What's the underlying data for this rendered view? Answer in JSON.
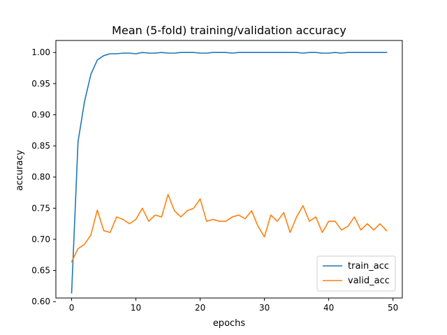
{
  "chart_data": {
    "type": "line",
    "title": "Mean (5-fold) training/validation accuracy",
    "xlabel": "epochs",
    "ylabel": "accuracy",
    "xlim": [
      -2.45,
      51.45
    ],
    "ylim": [
      0.6058,
      1.0193
    ],
    "xticks": [
      0,
      10,
      20,
      30,
      40,
      50
    ],
    "xtick_labels": [
      "0",
      "10",
      "20",
      "30",
      "40",
      "50"
    ],
    "yticks": [
      0.6,
      0.65,
      0.7,
      0.75,
      0.8,
      0.85,
      0.9,
      0.95,
      1.0
    ],
    "ytick_labels": [
      "0.60",
      "0.65",
      "0.70",
      "0.75",
      "0.80",
      "0.85",
      "0.90",
      "0.95",
      "1.00"
    ],
    "grid": false,
    "legend_position": "lower-right",
    "series": [
      {
        "name": "train_acc",
        "color": "#1f77b4",
        "x": [
          0,
          1,
          2,
          3,
          4,
          5,
          6,
          7,
          8,
          9,
          10,
          11,
          12,
          13,
          14,
          15,
          16,
          17,
          18,
          19,
          20,
          21,
          22,
          23,
          24,
          25,
          26,
          27,
          28,
          29,
          30,
          31,
          32,
          33,
          34,
          35,
          36,
          37,
          38,
          39,
          40,
          41,
          42,
          43,
          44,
          45,
          46,
          47,
          48,
          49
        ],
        "y": [
          0.614,
          0.857,
          0.921,
          0.965,
          0.988,
          0.995,
          0.998,
          0.998,
          0.999,
          0.999,
          0.998,
          1.0,
          0.999,
          0.999,
          1.0,
          0.999,
          0.999,
          1.0,
          1.0,
          1.0,
          0.999,
          0.999,
          1.0,
          1.0,
          1.0,
          0.999,
          1.0,
          1.0,
          1.0,
          1.0,
          1.0,
          1.0,
          1.0,
          1.0,
          1.0,
          1.0,
          0.999,
          1.0,
          1.0,
          0.999,
          0.999,
          1.0,
          0.999,
          1.0,
          1.0,
          1.0,
          1.0,
          1.0,
          1.0,
          1.0
        ]
      },
      {
        "name": "valid_acc",
        "color": "#ff7f0e",
        "x": [
          0,
          1,
          2,
          3,
          4,
          5,
          6,
          7,
          8,
          9,
          10,
          11,
          12,
          13,
          14,
          15,
          16,
          17,
          18,
          19,
          20,
          21,
          22,
          23,
          24,
          25,
          26,
          27,
          28,
          29,
          30,
          31,
          32,
          33,
          34,
          35,
          36,
          37,
          38,
          39,
          40,
          41,
          42,
          43,
          44,
          45,
          46,
          47,
          48,
          49
        ],
        "y": [
          0.664,
          0.685,
          0.692,
          0.707,
          0.747,
          0.714,
          0.711,
          0.736,
          0.732,
          0.725,
          0.732,
          0.75,
          0.729,
          0.739,
          0.736,
          0.772,
          0.746,
          0.736,
          0.746,
          0.75,
          0.765,
          0.729,
          0.732,
          0.729,
          0.729,
          0.736,
          0.739,
          0.733,
          0.746,
          0.721,
          0.704,
          0.739,
          0.729,
          0.743,
          0.711,
          0.736,
          0.754,
          0.729,
          0.736,
          0.711,
          0.729,
          0.729,
          0.715,
          0.721,
          0.736,
          0.715,
          0.725,
          0.715,
          0.725,
          0.714
        ]
      }
    ]
  }
}
